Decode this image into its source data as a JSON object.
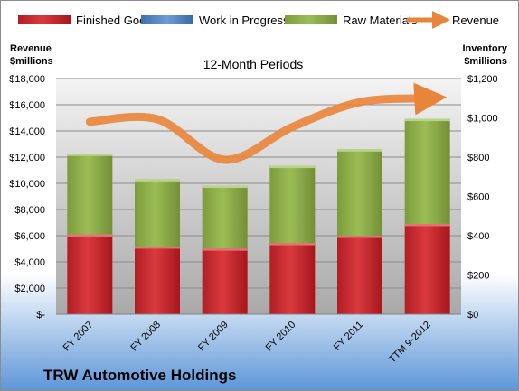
{
  "chart_data": {
    "type": "bar",
    "subtitle": "12-Month Periods",
    "company": "TRW Automotive Holdings",
    "categories": [
      "FY 2007",
      "FY 2008",
      "FY 2009",
      "FY 2010",
      "FY 2011",
      "TTM 9-2012"
    ],
    "left_axis": {
      "title_line1": "Revenue",
      "title_line2": "$millions",
      "ylim": [
        0,
        18000
      ],
      "ticks": [
        {
          "value": 0,
          "label": "$-"
        },
        {
          "value": 2000,
          "label": "$2,000"
        },
        {
          "value": 4000,
          "label": "$4,000"
        },
        {
          "value": 6000,
          "label": "$6,000"
        },
        {
          "value": 8000,
          "label": "$8,000"
        },
        {
          "value": 10000,
          "label": "$10,000"
        },
        {
          "value": 12000,
          "label": "$12,000"
        },
        {
          "value": 14000,
          "label": "$14,000"
        },
        {
          "value": 16000,
          "label": "$16,000"
        },
        {
          "value": 18000,
          "label": "$18,000"
        }
      ]
    },
    "right_axis": {
      "title_line1": "Inventory",
      "title_line2": "$millions",
      "ylim": [
        0,
        1200
      ],
      "ticks": [
        {
          "value": 0,
          "label": "$0"
        },
        {
          "value": 200,
          "label": "$200"
        },
        {
          "value": 400,
          "label": "$400"
        },
        {
          "value": 600,
          "label": "$600"
        },
        {
          "value": 800,
          "label": "$800"
        },
        {
          "value": 1000,
          "label": "$1,000"
        },
        {
          "value": 1200,
          "label": "$1,200"
        }
      ]
    },
    "bar_series": [
      {
        "name": "Finished Goods",
        "color": "#c0272d",
        "values": [
          407,
          345,
          335,
          363,
          400,
          460
        ]
      },
      {
        "name": "Work in Progress",
        "color": "#4f81bd",
        "values": [
          0,
          0,
          0,
          0,
          0,
          0
        ]
      },
      {
        "name": "Raw Materials",
        "color": "#8aab4a",
        "values": [
          410,
          343,
          320,
          393,
          440,
          535
        ]
      }
    ],
    "line_series": {
      "name": "Revenue",
      "color": "#e9853a",
      "values": [
        14700,
        14900,
        11800,
        14300,
        16200,
        16500
      ]
    },
    "grid": true,
    "legend": "top"
  }
}
